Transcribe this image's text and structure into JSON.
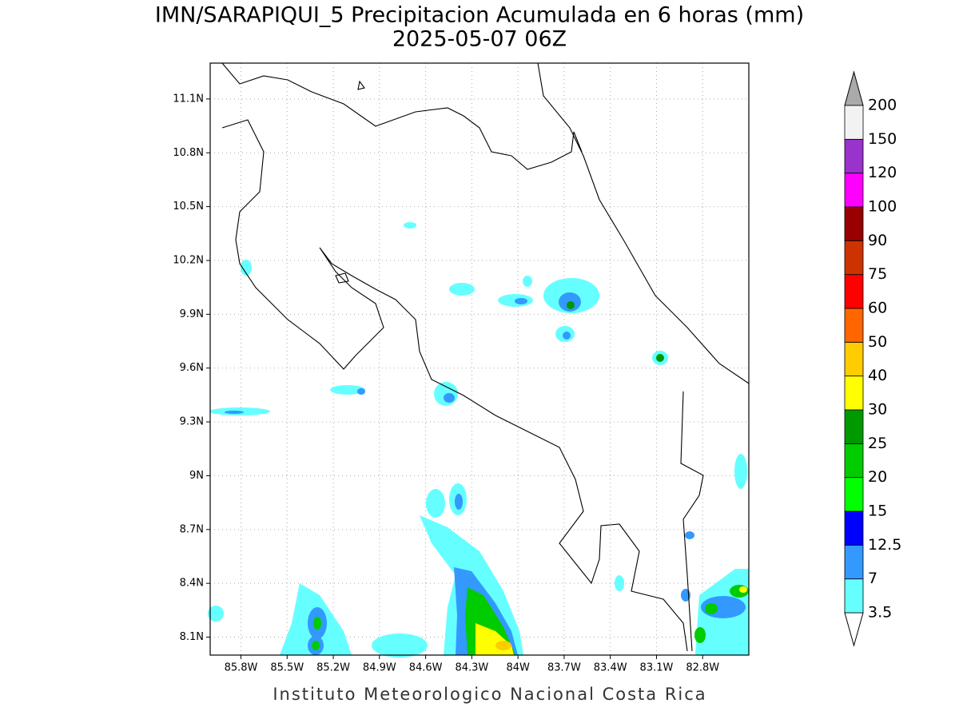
{
  "chart_data": {
    "type": "map",
    "title": "IMN/SARAPIQUI_5 Precipitacion Acumulada en 6 horas (mm)",
    "subtitle": "2025-05-07 06Z",
    "footer": "Instituto Meteorologico Nacional Costa Rica",
    "xlim": [
      -86.0,
      -82.5
    ],
    "ylim": [
      8.0,
      11.3
    ],
    "grid": true,
    "xticks": [
      {
        "value": -85.8,
        "label": "85.8W"
      },
      {
        "value": -85.5,
        "label": "85.5W"
      },
      {
        "value": -85.2,
        "label": "85.2W"
      },
      {
        "value": -84.9,
        "label": "84.9W"
      },
      {
        "value": -84.6,
        "label": "84.6W"
      },
      {
        "value": -84.3,
        "label": "84.3W"
      },
      {
        "value": -84.0,
        "label": "84W"
      },
      {
        "value": -83.7,
        "label": "83.7W"
      },
      {
        "value": -83.4,
        "label": "83.4W"
      },
      {
        "value": -83.1,
        "label": "83.1W"
      },
      {
        "value": -82.8,
        "label": "82.8W"
      }
    ],
    "yticks": [
      {
        "value": 8.1,
        "label": "8.1N"
      },
      {
        "value": 8.4,
        "label": "8.4N"
      },
      {
        "value": 8.7,
        "label": "8.7N"
      },
      {
        "value": 9.0,
        "label": "9N"
      },
      {
        "value": 9.3,
        "label": "9.3N"
      },
      {
        "value": 9.6,
        "label": "9.6N"
      },
      {
        "value": 9.9,
        "label": "9.9N"
      },
      {
        "value": 10.2,
        "label": "10.2N"
      },
      {
        "value": 10.5,
        "label": "10.5N"
      },
      {
        "value": 10.8,
        "label": "10.8N"
      },
      {
        "value": 11.1,
        "label": "11.1N"
      }
    ],
    "colorbar": {
      "levels": [
        3.5,
        7,
        12.5,
        15,
        20,
        25,
        30,
        40,
        50,
        60,
        75,
        90,
        100,
        120,
        150,
        200
      ],
      "colors": [
        "#66ffff",
        "#3399ff",
        "#0000ff",
        "#00ff00",
        "#00cc00",
        "#009900",
        "#ffff00",
        "#ffcc00",
        "#ff6600",
        "#ff0000",
        "#cc3300",
        "#990000",
        "#ff00ff",
        "#9933cc",
        "#f2f2f2"
      ],
      "under_color": "#ffffff",
      "over_color": "#aaaaaa"
    }
  }
}
